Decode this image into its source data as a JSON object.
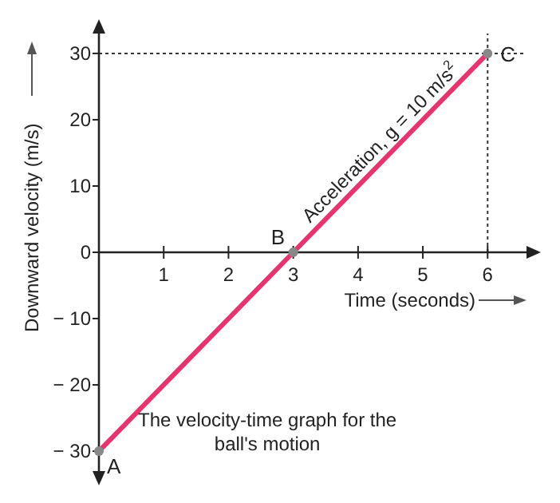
{
  "chart_data": {
    "type": "line",
    "xlabel": "Time (seconds)",
    "ylabel": "Downward velocity (m/s)",
    "xlim": [
      0,
      6.6
    ],
    "ylim": [
      -33,
      33
    ],
    "xticks": [
      1,
      2,
      3,
      4,
      5,
      6
    ],
    "yticks": [
      {
        "value": -30,
        "label": "− 30"
      },
      {
        "value": -20,
        "label": "− 20"
      },
      {
        "value": -10,
        "label": "− 10"
      },
      0,
      10,
      20,
      30
    ],
    "series": [
      {
        "x": [
          0,
          3,
          6
        ],
        "values": [
          -30,
          0,
          30
        ],
        "color": "#e8336e"
      }
    ],
    "marker": "circle",
    "ref_lines": [
      {
        "axis": "y",
        "value": 30,
        "line_style": "dotted",
        "color": "#333333"
      },
      {
        "axis": "x",
        "value": 6,
        "line_style": "dotted",
        "color": "#333333"
      }
    ],
    "annotations": [
      {
        "text": "A",
        "x": 0,
        "y": -30
      },
      {
        "text": "B",
        "x": 3,
        "y": 0
      },
      {
        "text": "C",
        "x": 6,
        "y": 30
      },
      {
        "text": "Acceleration, g = 10 m/s$^{2}$",
        "x": 4.5,
        "y": 15
      },
      "The velocity-time graph for the\nball's motion"
    ]
  }
}
